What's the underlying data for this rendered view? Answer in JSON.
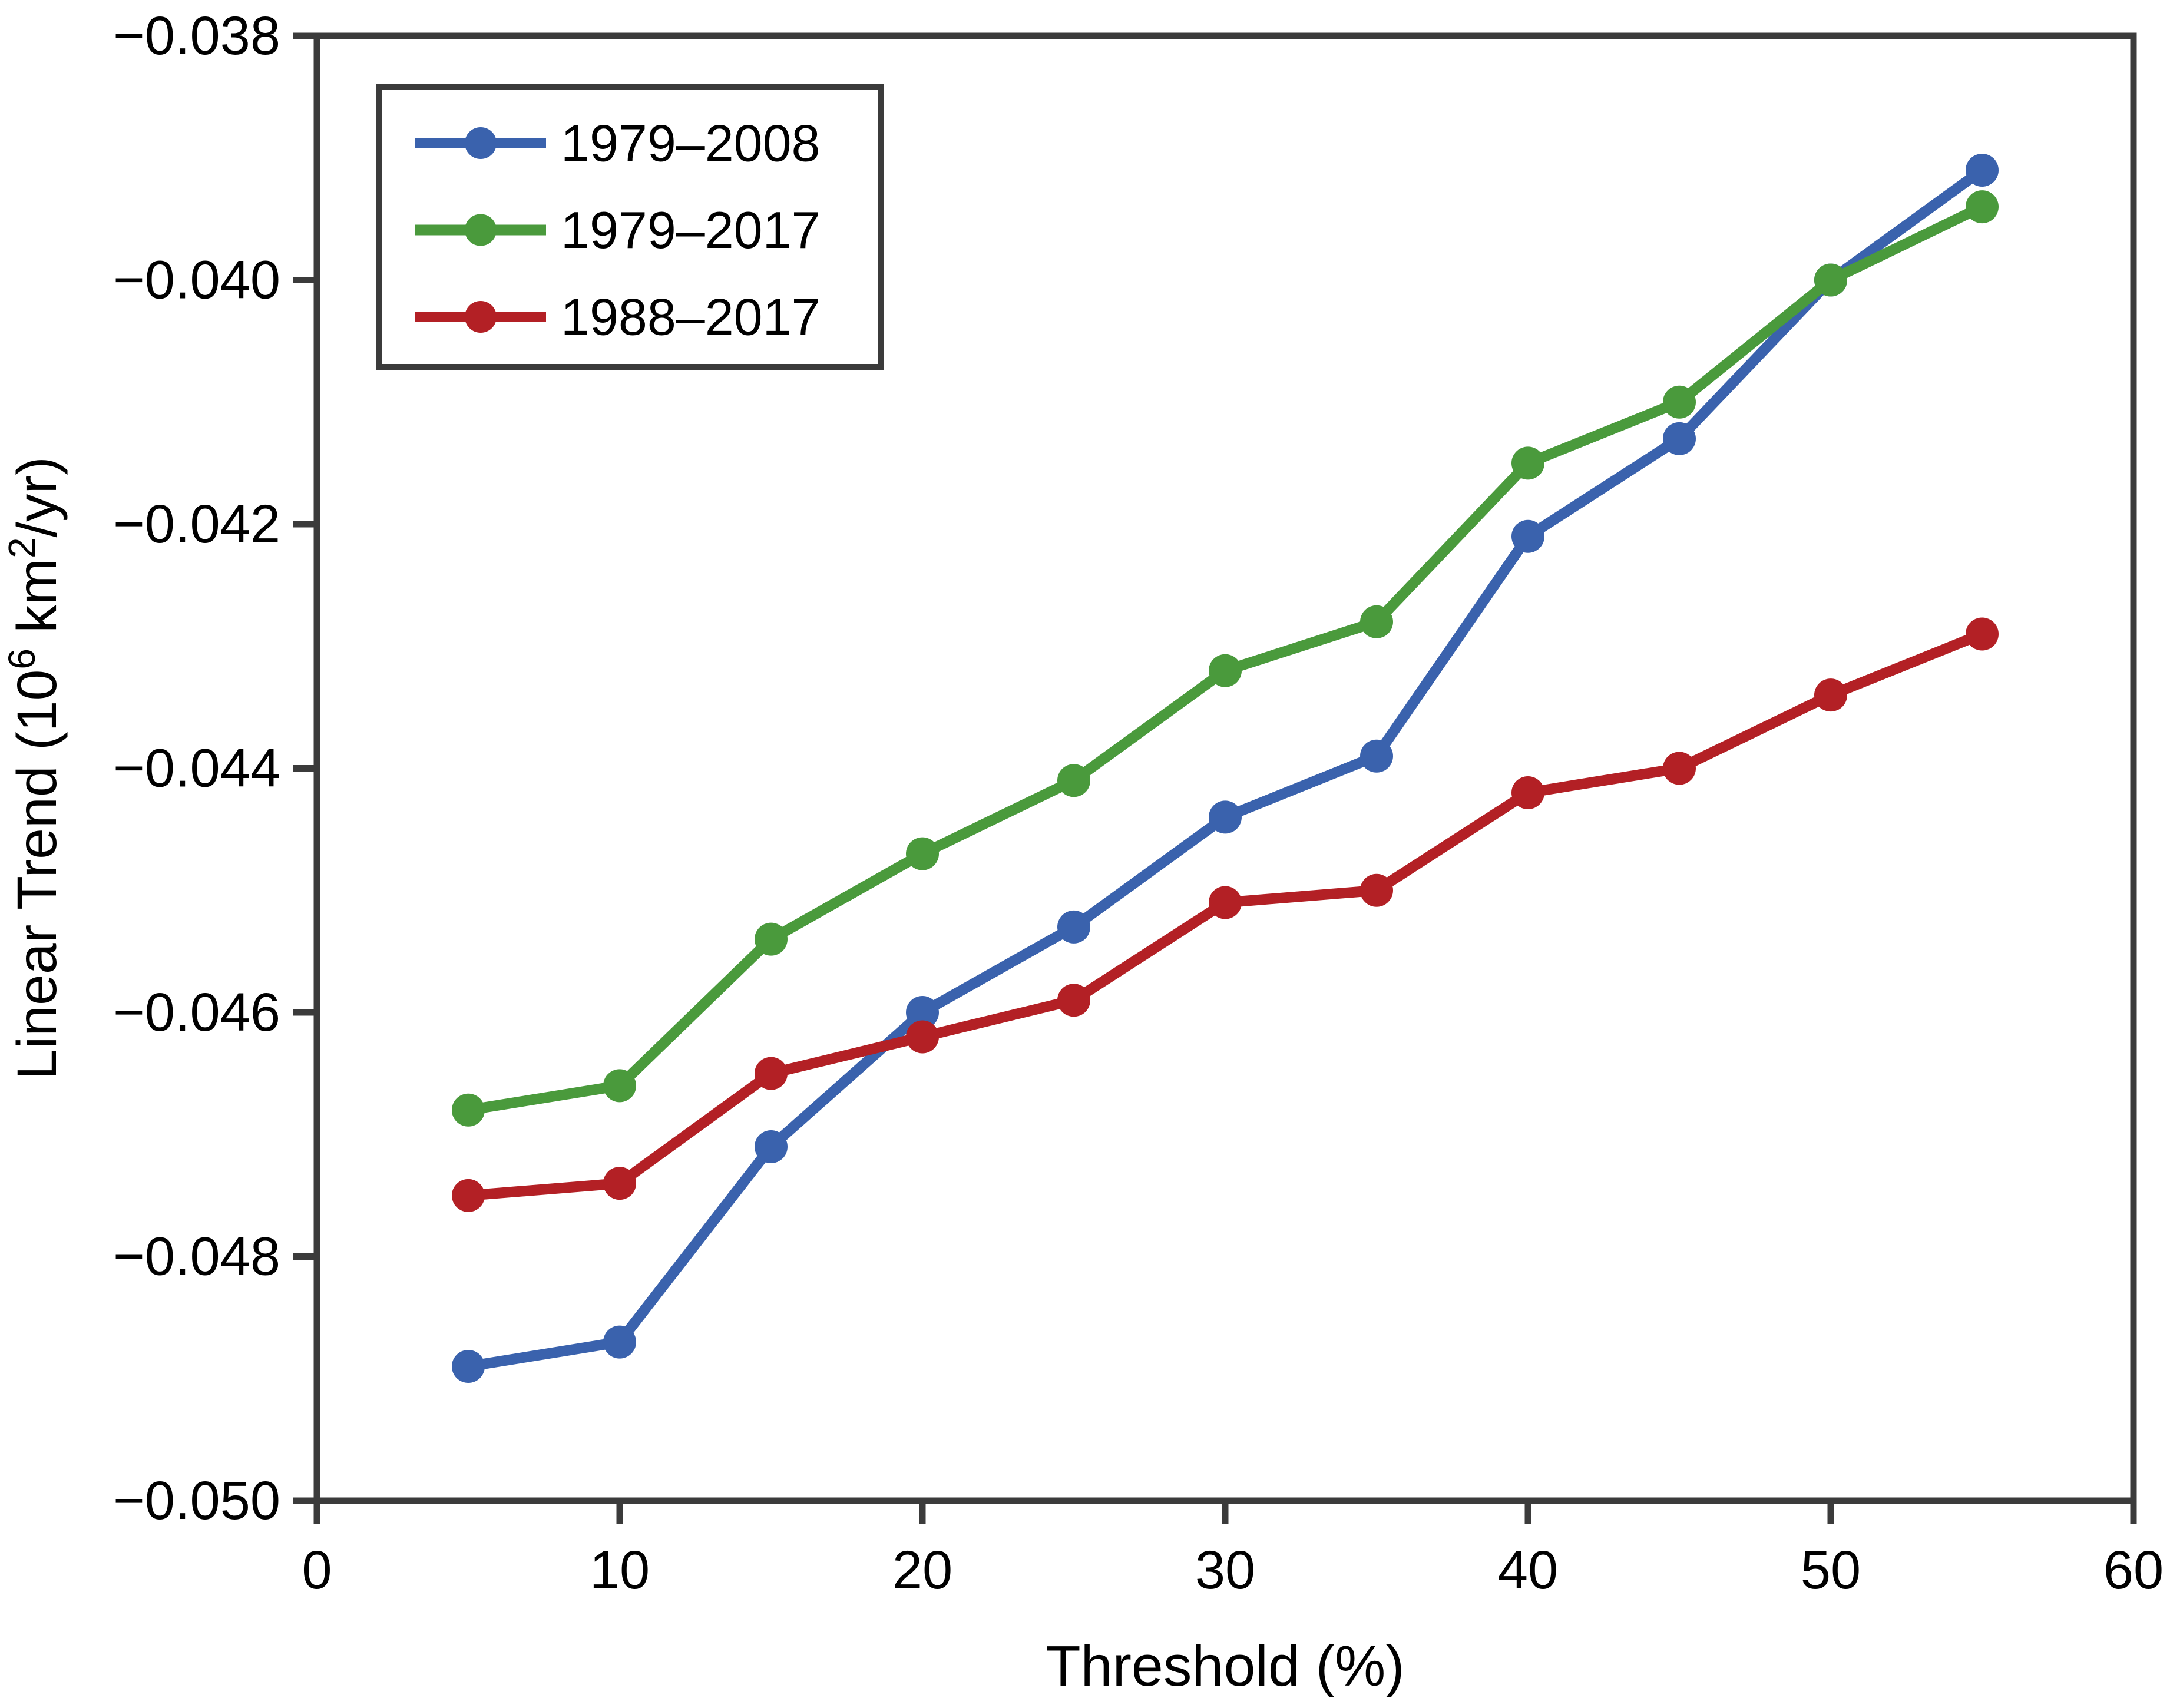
{
  "figure": {
    "background": "#ffffff"
  },
  "chart_data": {
    "type": "line",
    "title": "",
    "xlabel": "Threshold (%)",
    "ylabel": "Linear Trend (10⁶ km²/yr)",
    "ylabel_parts": [
      {
        "text": "Linear Trend (10",
        "sup": false
      },
      {
        "text": "6",
        "sup": true
      },
      {
        "text": " km",
        "sup": false
      },
      {
        "text": "2",
        "sup": true
      },
      {
        "text": "/yr)",
        "sup": false
      }
    ],
    "x": [
      5,
      10,
      15,
      20,
      25,
      30,
      35,
      40,
      45,
      50,
      55
    ],
    "series": [
      {
        "name": "1979–2008",
        "color": "#3a62ad",
        "values": [
          -0.0489,
          -0.0487,
          -0.0471,
          -0.046,
          -0.0453,
          -0.0444,
          -0.0439,
          -0.0421,
          -0.0413,
          -0.04,
          -0.0391
        ]
      },
      {
        "name": "1979–2017",
        "color": "#4a9a3c",
        "values": [
          -0.0468,
          -0.0466,
          -0.0454,
          -0.0447,
          -0.0441,
          -0.0432,
          -0.0428,
          -0.0415,
          -0.041,
          -0.04,
          -0.0394
        ]
      },
      {
        "name": "1988–2017",
        "color": "#b32025",
        "values": [
          -0.0475,
          -0.0474,
          -0.0465,
          -0.0462,
          -0.0459,
          -0.0451,
          -0.045,
          -0.0442,
          -0.044,
          -0.0434,
          -0.0429
        ]
      }
    ],
    "xlim": [
      0,
      60
    ],
    "ylim": [
      -0.05,
      -0.038
    ],
    "xticks": [
      0,
      10,
      20,
      30,
      40,
      50,
      60
    ],
    "x_tick_labels": [
      "0",
      "10",
      "20",
      "30",
      "40",
      "50",
      "60"
    ],
    "yticks": [
      -0.038,
      -0.04,
      -0.042,
      -0.044,
      -0.046,
      -0.048,
      -0.05
    ],
    "y_tick_labels": [
      "−0.038",
      "−0.040",
      "−0.042",
      "−0.044",
      "−0.046",
      "−0.048",
      "−0.050"
    ],
    "grid": false,
    "legend": {
      "position": "upper-left-inside",
      "items": [
        {
          "label": "1979–2008",
          "color": "#3a62ad"
        },
        {
          "label": "1979–2017",
          "color": "#4a9a3c"
        },
        {
          "label": "1988–2017",
          "color": "#b32025"
        }
      ]
    },
    "axis_color": "#3b3b3b",
    "text_color": "#000000",
    "background": "#ffffff"
  }
}
